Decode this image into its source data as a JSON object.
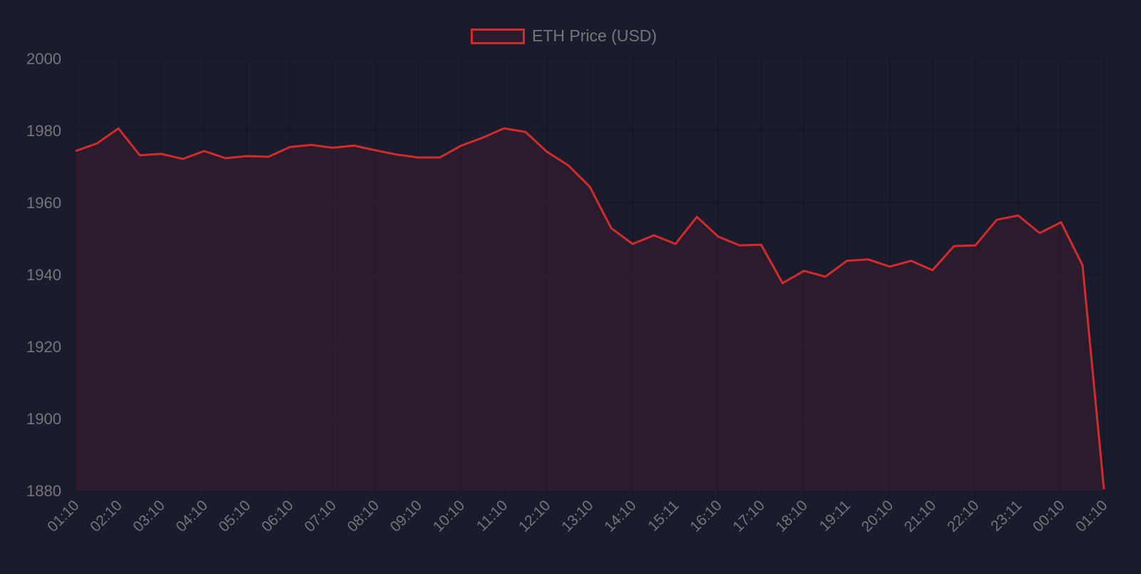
{
  "chart_data": {
    "type": "area",
    "title": "",
    "legend": {
      "position": "top",
      "entries": [
        "ETH Price (USD)"
      ]
    },
    "series": [
      {
        "name": "ETH Price (USD)",
        "color": "#d12b2b",
        "fill": "#2c1b2d",
        "values": [
          1974.3,
          1976.4,
          1980.6,
          1973.1,
          1973.5,
          1972.1,
          1974.3,
          1972.3,
          1972.9,
          1972.7,
          1975.4,
          1976.0,
          1975.2,
          1975.8,
          1974.5,
          1973.3,
          1972.5,
          1972.5,
          1975.8,
          1978.0,
          1980.6,
          1979.6,
          1974.1,
          1970.3,
          1964.4,
          1952.9,
          1948.5,
          1950.9,
          1948.5,
          1956.0,
          1950.5,
          1948.1,
          1948.3,
          1937.6,
          1941.0,
          1939.4,
          1943.8,
          1944.2,
          1942.2,
          1943.8,
          1941.2,
          1947.9,
          1948.1,
          1955.2,
          1956.4,
          1951.5,
          1954.5,
          1942.6,
          1880.4
        ]
      }
    ],
    "xtick_labels": [
      "01:10",
      "02:10",
      "03:10",
      "04:10",
      "05:10",
      "06:10",
      "07:10",
      "08:10",
      "09:10",
      "10:10",
      "11:10",
      "12:10",
      "13:10",
      "14:10",
      "15:11",
      "16:10",
      "17:10",
      "18:10",
      "19:11",
      "20:10",
      "21:10",
      "22:10",
      "23:11",
      "00:10",
      "01:10"
    ],
    "yticks": [
      2000,
      1980,
      1960,
      1940,
      1920,
      1900,
      1880
    ],
    "ylim": [
      1880,
      2000
    ],
    "xlabel": "",
    "ylabel": "",
    "grid": true
  },
  "legend": {
    "label": "ETH Price (USD)"
  }
}
